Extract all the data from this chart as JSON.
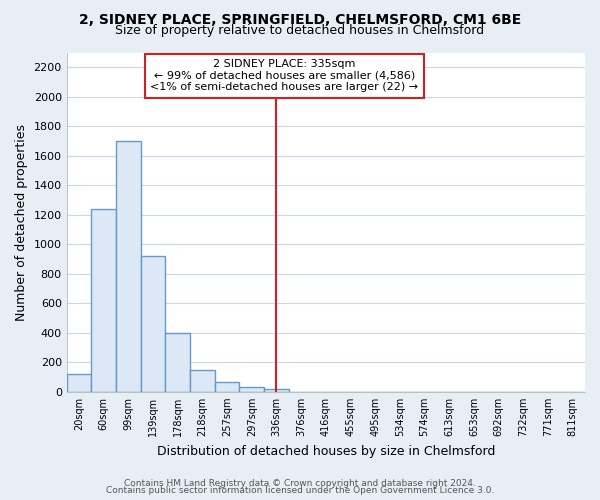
{
  "title": "2, SIDNEY PLACE, SPRINGFIELD, CHELMSFORD, CM1 6BE",
  "subtitle": "Size of property relative to detached houses in Chelmsford",
  "xlabel": "Distribution of detached houses by size in Chelmsford",
  "ylabel": "Number of detached properties",
  "bar_fill_color": "#dce8f5",
  "bar_edge_color": "#6699cc",
  "categories": [
    "20sqm",
    "60sqm",
    "99sqm",
    "139sqm",
    "178sqm",
    "218sqm",
    "257sqm",
    "297sqm",
    "336sqm",
    "376sqm",
    "416sqm",
    "455sqm",
    "495sqm",
    "534sqm",
    "574sqm",
    "613sqm",
    "653sqm",
    "692sqm",
    "732sqm",
    "771sqm",
    "811sqm"
  ],
  "values": [
    120,
    1240,
    1700,
    920,
    400,
    150,
    65,
    30,
    20,
    0,
    0,
    0,
    0,
    0,
    0,
    0,
    0,
    0,
    0,
    0,
    0
  ],
  "red_line_index": 8,
  "annotation_line1": "2 SIDNEY PLACE: 335sqm",
  "annotation_line2": "← 99% of detached houses are smaller (4,586)",
  "annotation_line3": "<1% of semi-detached houses are larger (22) →",
  "ylim": [
    0,
    2300
  ],
  "yticks": [
    0,
    200,
    400,
    600,
    800,
    1000,
    1200,
    1400,
    1600,
    1800,
    2000,
    2200
  ],
  "footer_line1": "Contains HM Land Registry data © Crown copyright and database right 2024.",
  "footer_line2": "Contains public sector information licensed under the Open Government Licence 3.0.",
  "fig_bg_color": "#e8eef5",
  "plot_bg_color": "#ffffff",
  "grid_color": "#c8d8e8",
  "annotation_box_edgecolor": "#cc2222",
  "red_line_color": "#cc2222",
  "title_fontsize": 10,
  "subtitle_fontsize": 9,
  "axis_label_fontsize": 9,
  "tick_fontsize": 8,
  "footer_fontsize": 6.5
}
